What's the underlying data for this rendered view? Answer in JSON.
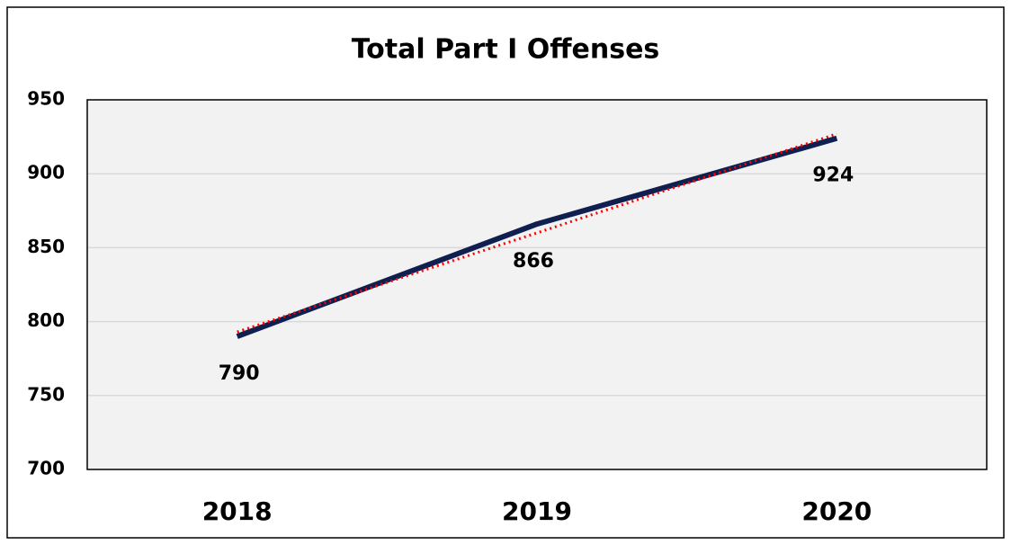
{
  "chart_data": {
    "type": "line",
    "title": "Total Part I Offenses",
    "categories": [
      "2018",
      "2019",
      "2020"
    ],
    "values": [
      790,
      866,
      924
    ],
    "color": "#0e1f50",
    "ylim": [
      700,
      950
    ],
    "yticks": [
      700,
      750,
      800,
      850,
      900,
      950
    ],
    "grid": true,
    "trendline": {
      "type": "linear",
      "color": "#ff0000"
    }
  }
}
